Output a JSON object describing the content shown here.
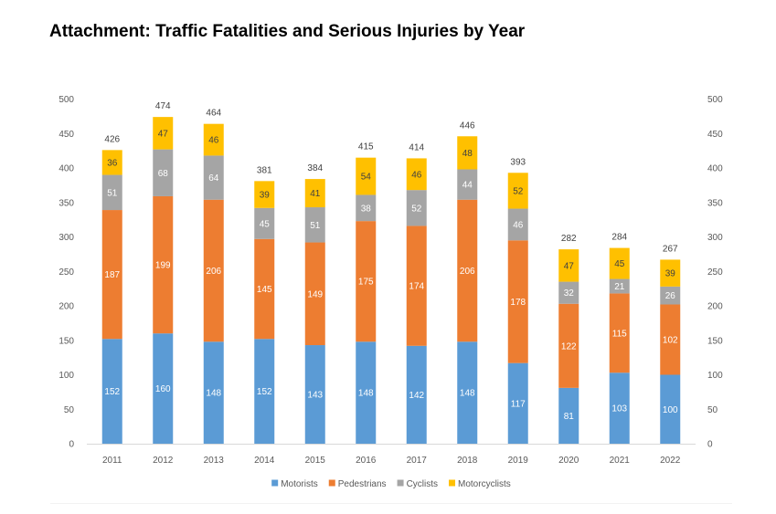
{
  "title": "Attachment: Traffic Fatalities and Serious Injuries by Year",
  "chart_data": {
    "type": "bar",
    "stacked": true,
    "title": "",
    "xlabel": "",
    "ylabel": "",
    "ylim": [
      0,
      500
    ],
    "ytick_step": 50,
    "secondary_y_axis": true,
    "grid": false,
    "legend_position": "bottom",
    "categories": [
      "2011",
      "2012",
      "2013",
      "2014",
      "2015",
      "2016",
      "2017",
      "2018",
      "2019",
      "2020",
      "2021",
      "2022"
    ],
    "series": [
      {
        "name": "Motorists",
        "color": "#5b9bd5",
        "label_color": "#ffffff",
        "values": [
          152,
          160,
          148,
          152,
          143,
          148,
          142,
          148,
          117,
          81,
          103,
          100
        ]
      },
      {
        "name": "Pedestrians",
        "color": "#ed7d31",
        "label_color": "#ffffff",
        "values": [
          187,
          199,
          206,
          145,
          149,
          175,
          174,
          206,
          178,
          122,
          115,
          102
        ]
      },
      {
        "name": "Cyclists",
        "color": "#a5a5a5",
        "label_color": "#ffffff",
        "values": [
          51,
          68,
          64,
          45,
          51,
          38,
          52,
          44,
          46,
          32,
          21,
          26
        ]
      },
      {
        "name": "Motorcyclists",
        "color": "#ffc000",
        "label_color": "#404040",
        "values": [
          36,
          47,
          46,
          39,
          41,
          54,
          46,
          48,
          52,
          47,
          45,
          39
        ]
      }
    ],
    "totals": [
      426,
      474,
      464,
      381,
      384,
      415,
      414,
      446,
      393,
      282,
      284,
      267
    ]
  }
}
